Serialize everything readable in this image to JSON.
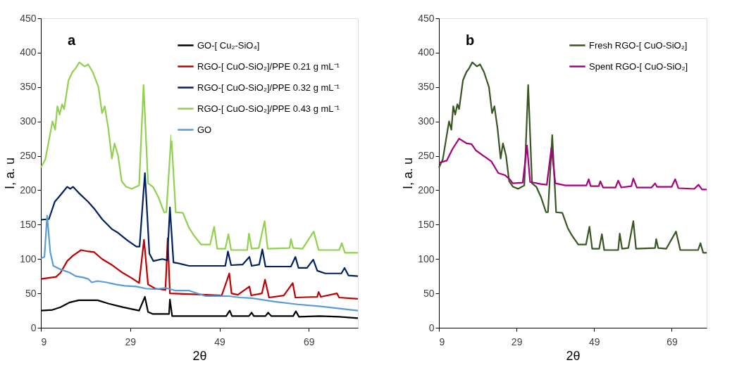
{
  "chart_data": [
    {
      "type": "line",
      "xlabel": "2θ",
      "ylabel": "I, a. u",
      "annotations": [
        "a"
      ],
      "xlim": [
        9,
        80
      ],
      "ylim": [
        0,
        450
      ],
      "xticks": [
        9,
        29,
        49,
        69
      ],
      "yticks": [
        0,
        50,
        100,
        150,
        200,
        250,
        300,
        350,
        400,
        450
      ],
      "grid": false,
      "legend": "top right",
      "marker": "none",
      "line_style": "solid",
      "series": [
        {
          "name": "GO-[ Cu₂-SiO₄]",
          "color": "#000000",
          "x": [
            9,
            11.6,
            13.4,
            15.5,
            17.5,
            21.7,
            24.2,
            27.3,
            31,
            32.3,
            33,
            34.1,
            37.7,
            37.9,
            38.4,
            42.2,
            50.5,
            51.3,
            51.8,
            55.6,
            56.2,
            56.7,
            59.3,
            59.9,
            60.6,
            65.5,
            66.1,
            66.8,
            71.4,
            75.8,
            80
          ],
          "values": [
            25,
            26,
            30,
            37,
            40,
            40,
            35,
            30,
            25,
            45,
            23,
            20,
            20,
            41,
            17,
            17,
            17,
            25,
            17,
            17,
            22,
            17,
            17,
            22,
            17,
            17,
            24,
            16,
            17,
            16,
            14
          ]
        },
        {
          "name": "RGO-[ CuO-SiO₂]/PPE 0.21 g mL⁻¹",
          "color": "#c00000",
          "x": [
            9,
            12.4,
            13.4,
            14.9,
            16.2,
            18,
            19.6,
            20.9,
            22.7,
            25,
            27.3,
            29.4,
            31,
            32.1,
            33,
            34.6,
            36.9,
            37.4,
            37.9,
            42.2,
            49.5,
            51.2,
            51.7,
            53.1,
            55.7,
            56.1,
            58.5,
            59.2,
            60.1,
            63.4,
            65.4,
            66,
            70.9,
            71.2,
            71.7,
            75.3,
            75.8,
            80
          ],
          "values": [
            71,
            74,
            80,
            97,
            105,
            113,
            111,
            110,
            100,
            91,
            80,
            72,
            65,
            128,
            63,
            57,
            55,
            130,
            50,
            49,
            47,
            79,
            50,
            48,
            60,
            47,
            50,
            70,
            44,
            47,
            65,
            44,
            45,
            52,
            45,
            50,
            44,
            42
          ]
        },
        {
          "name": "RGO-[ CuO-SiO₂]/PPE 0.32 g mL⁻¹",
          "color": "#002060",
          "x": [
            9,
            10.8,
            12.1,
            13.4,
            14.9,
            15.6,
            16.2,
            17.5,
            19.6,
            21.1,
            22.7,
            25,
            26.3,
            28.4,
            30.4,
            31.1,
            32.3,
            33.3,
            34.2,
            36.2,
            37.3,
            37.9,
            38.7,
            40.3,
            42.2,
            50.3,
            50.9,
            51.6,
            54.2,
            55.7,
            56.2,
            57.9,
            58.6,
            59.3,
            65,
            66,
            66.7,
            68.6,
            70,
            70.9,
            72.7,
            76.3,
            77,
            77.9,
            80
          ],
          "values": [
            157,
            158,
            183,
            193,
            205,
            202,
            205,
            196,
            183,
            172,
            158,
            143,
            138,
            127,
            118,
            118,
            225,
            108,
            97,
            100,
            98,
            175,
            95,
            93,
            90,
            90,
            111,
            91,
            92,
            103,
            90,
            92,
            114,
            89,
            89,
            103,
            87,
            87,
            99,
            83,
            79,
            79,
            87,
            76,
            75
          ]
        },
        {
          "name": "RGO-[ CuO-SiO₂]/PPE 0.43 g mL⁻¹",
          "color": "#92d050",
          "x": [
            9,
            10,
            11.6,
            12.2,
            12.7,
            13.2,
            13.75,
            14.2,
            15.2,
            16.1,
            16.75,
            17.6,
            18.8,
            19.6,
            20.6,
            21.9,
            22.7,
            23.3,
            24.1,
            24.9,
            25.5,
            26.3,
            27.1,
            28.1,
            29.4,
            31,
            32,
            33,
            34.1,
            35.3,
            36.6,
            37.1,
            38.2,
            39.2,
            40.8,
            42.2,
            43.3,
            44.9,
            46.9,
            47.8,
            48.5,
            50.3,
            51,
            51.6,
            55.2,
            55.6,
            56.2,
            57.8,
            59.1,
            59.8,
            64.7,
            65,
            65.5,
            67.6,
            70.1,
            71.2,
            75.8,
            76.4,
            77.1,
            80
          ],
          "values": [
            233,
            245,
            300,
            288,
            322,
            310,
            325,
            318,
            360,
            372,
            377,
            386,
            380,
            383,
            372,
            350,
            312,
            322,
            290,
            246,
            268,
            250,
            213,
            205,
            202,
            207,
            353,
            210,
            205,
            190,
            168,
            168,
            280,
            168,
            167,
            145,
            134,
            121,
            121,
            147,
            115,
            115,
            136,
            113,
            113,
            137,
            115,
            116,
            155,
            115,
            116,
            129,
            116,
            115,
            140,
            113,
            113,
            123,
            109,
            109
          ]
        },
        {
          "name": "GO",
          "color": "#5b9bd5",
          "x": [
            9,
            9.8,
            10.4,
            11.1,
            11.8,
            13.4,
            15.5,
            16.8,
            18.6,
            19.6,
            20.4,
            21.7,
            23.7,
            25.8,
            27.8,
            30.4,
            32.5,
            34.6,
            36.9,
            39.2,
            42.2,
            45.9,
            51.1,
            53.6,
            56.2,
            61.4,
            66.5,
            71.7,
            80
          ],
          "values": [
            101,
            103,
            163,
            110,
            90,
            85,
            80,
            75,
            73,
            71,
            66,
            68,
            66,
            63,
            61,
            60,
            57,
            56,
            58,
            54,
            54,
            46,
            46,
            44,
            43,
            38,
            34,
            31,
            25
          ]
        }
      ]
    },
    {
      "type": "line",
      "xlabel": "2θ",
      "ylabel": "I, a. u",
      "annotations": [
        "b"
      ],
      "xlim": [
        9,
        78
      ],
      "ylim": [
        0,
        450
      ],
      "xticks": [
        9,
        29,
        49,
        69
      ],
      "yticks": [
        0,
        50,
        100,
        150,
        200,
        250,
        300,
        350,
        400,
        450
      ],
      "grid": false,
      "legend": "top right",
      "marker": "none",
      "line_style": "solid",
      "series": [
        {
          "name": "Fresh RGO-[ CuO-SiO₂]",
          "color": "#375623",
          "x": [
            9,
            10,
            11.6,
            12.2,
            12.7,
            13.2,
            13.75,
            14.2,
            15.2,
            16.1,
            16.75,
            17.6,
            18.8,
            19.6,
            20.6,
            21.9,
            22.7,
            23.3,
            24.1,
            24.9,
            25.5,
            26.3,
            27.1,
            28.1,
            29.4,
            31,
            32,
            33,
            34.1,
            35.3,
            36.6,
            37.1,
            38.2,
            39.2,
            40.8,
            42.2,
            43.3,
            44.9,
            46.9,
            47.8,
            48.5,
            50.3,
            51,
            51.6,
            55.2,
            55.6,
            56.2,
            57.8,
            59.1,
            59.8,
            64.7,
            65,
            65.5,
            67.6,
            70.1,
            71.2,
            75.8,
            76.4,
            77.1,
            78
          ],
          "values": [
            233,
            245,
            300,
            288,
            322,
            310,
            325,
            318,
            360,
            372,
            377,
            386,
            380,
            383,
            372,
            350,
            312,
            322,
            290,
            246,
            268,
            250,
            213,
            205,
            202,
            207,
            353,
            210,
            205,
            190,
            168,
            168,
            280,
            168,
            167,
            145,
            134,
            121,
            121,
            147,
            115,
            115,
            136,
            113,
            113,
            137,
            115,
            116,
            155,
            115,
            116,
            129,
            116,
            115,
            140,
            113,
            113,
            123,
            109,
            109
          ]
        },
        {
          "name": "Spent RGO-[ CuO-SiO₂]",
          "color": "#a8007f",
          "x": [
            9,
            11,
            12.5,
            14.2,
            16.2,
            17.4,
            18.5,
            20.5,
            22.5,
            24.3,
            26,
            27.4,
            28,
            30.6,
            31.7,
            32.5,
            35.2,
            36.8,
            38,
            39,
            41.6,
            47,
            47.6,
            48.1,
            50.2,
            50.6,
            51.3,
            54.5,
            55.2,
            56,
            58.6,
            59.1,
            60,
            63.8,
            64.7,
            65.2,
            69,
            69.9,
            70.7,
            74.8,
            75.9,
            76.8,
            78
          ],
          "values": [
            240,
            243,
            260,
            275,
            268,
            267,
            258,
            250,
            242,
            225,
            222,
            215,
            210,
            211,
            265,
            212,
            209,
            208,
            262,
            210,
            207,
            207,
            216,
            206,
            206,
            213,
            204,
            204,
            214,
            204,
            206,
            217,
            204,
            204,
            210,
            205,
            205,
            216,
            203,
            202,
            208,
            201,
            201
          ]
        }
      ]
    }
  ]
}
